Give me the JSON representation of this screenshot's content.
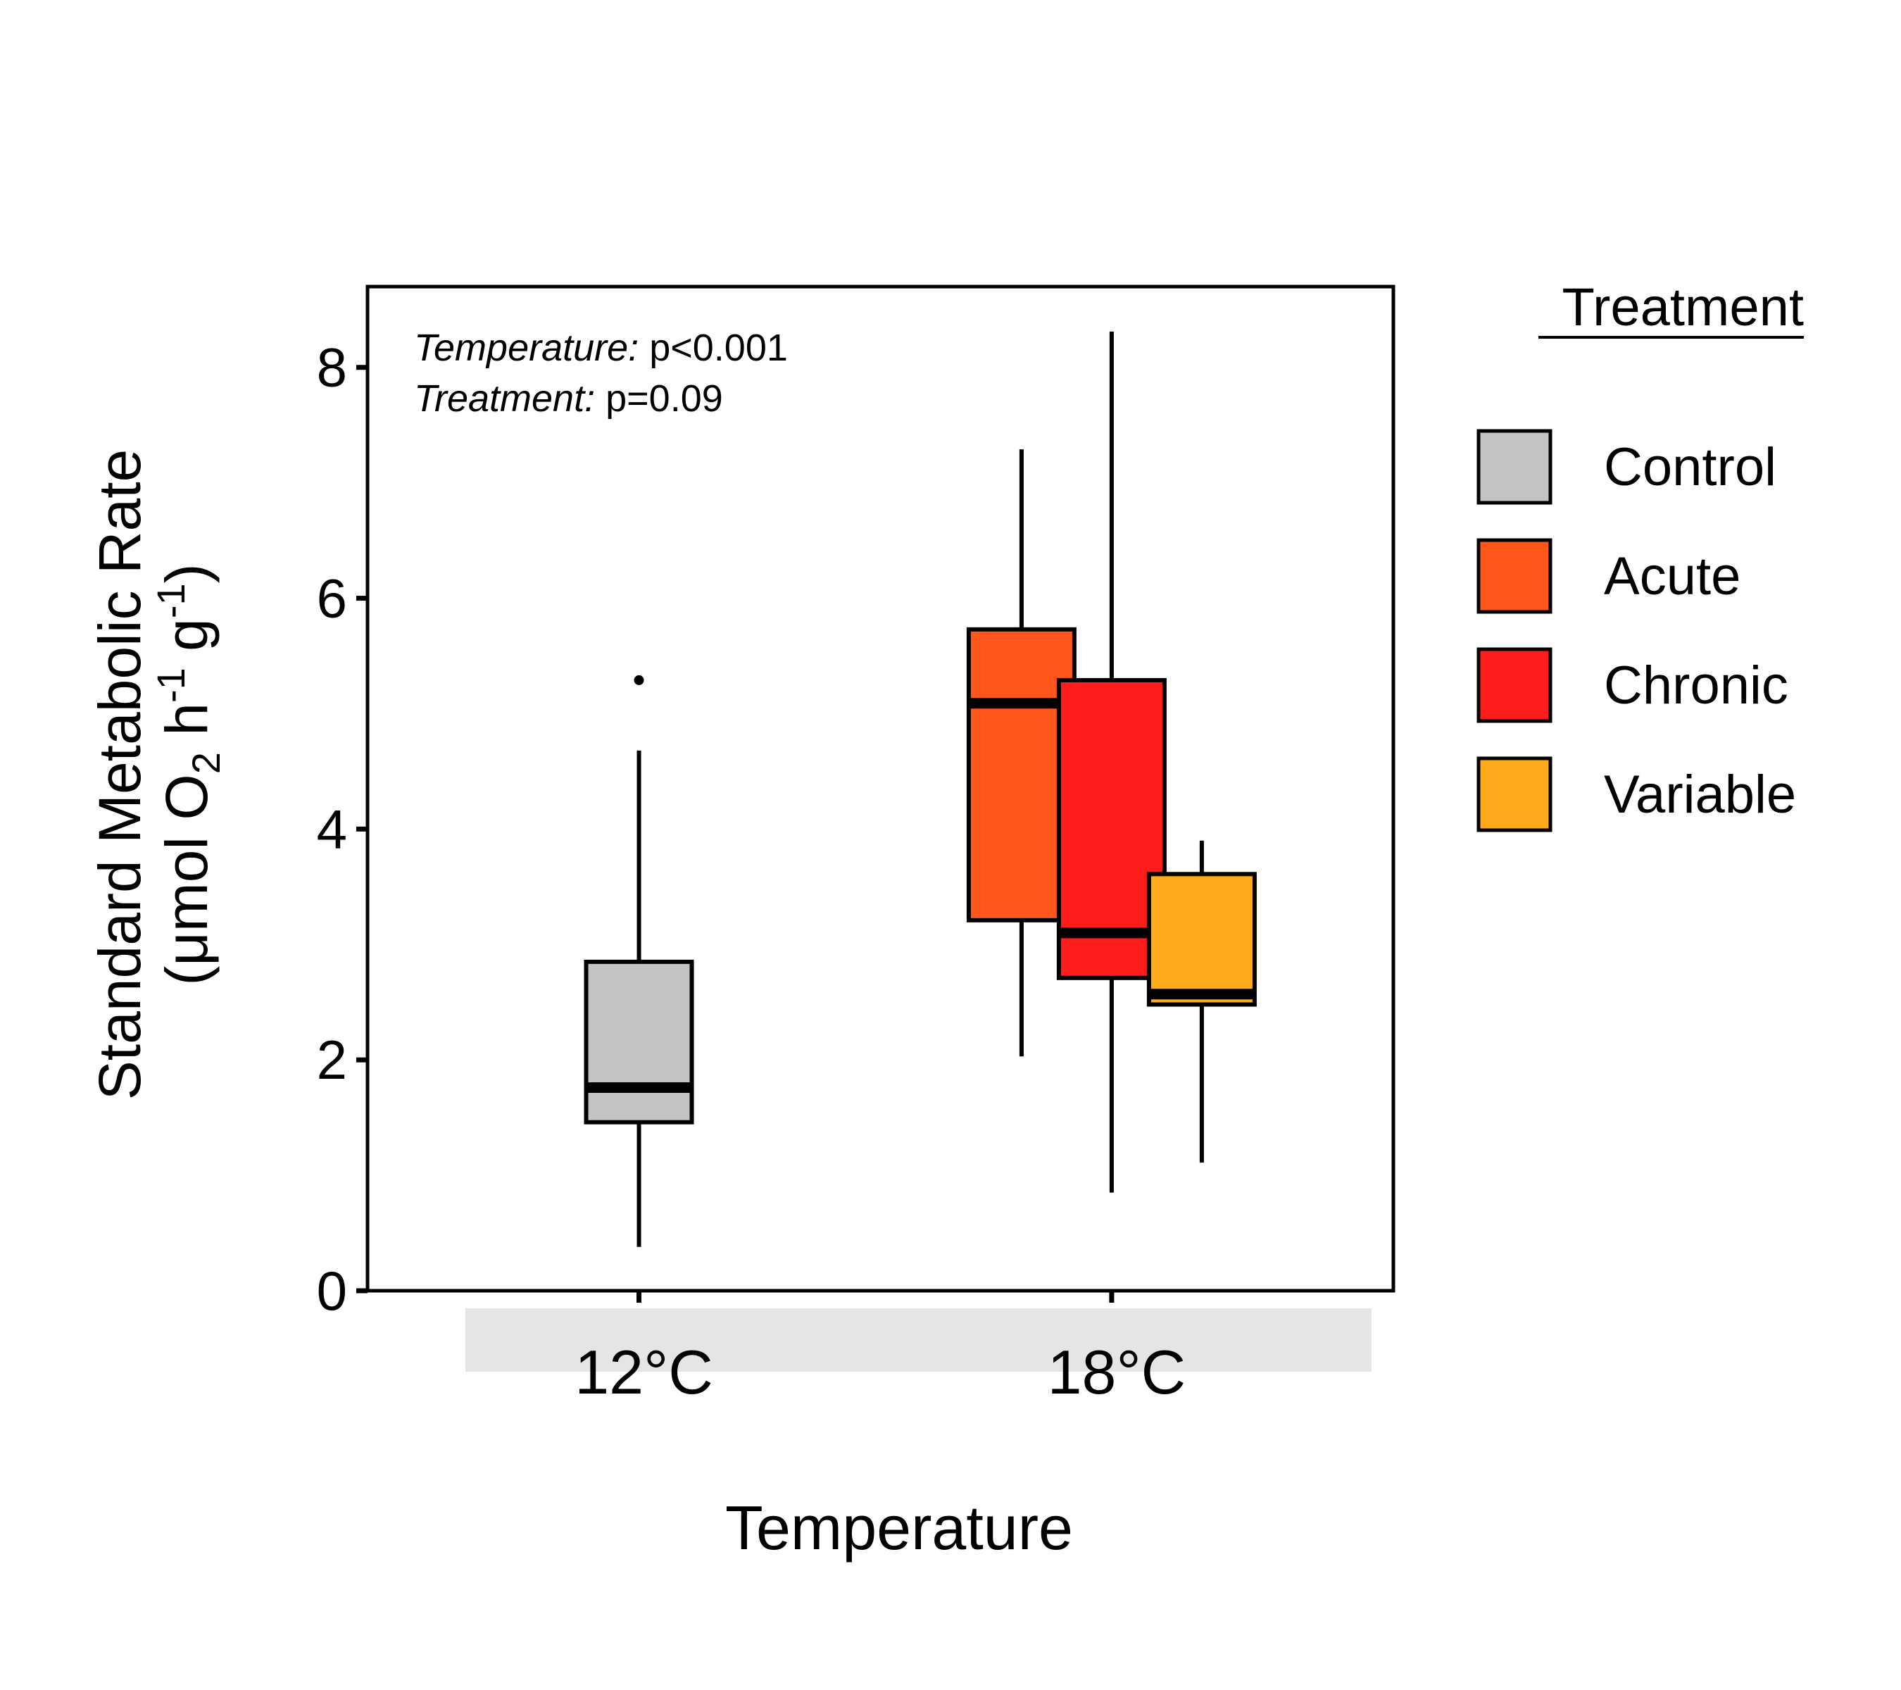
{
  "chart_data": {
    "type": "box",
    "xlabel": "Temperature",
    "ylabel_line1": "Standard Metabolic Rate",
    "ylabel_line2": {
      "open": "(μmol O",
      "sub": "2",
      "mid1": " h",
      "sup1": "-1",
      "mid2": " g",
      "sup2": "-1",
      "close": ")"
    },
    "ylim": [
      0,
      8.7
    ],
    "yticks": [
      0,
      2,
      4,
      6,
      8
    ],
    "grid": false,
    "legend_position": "right",
    "legend_title": "Treatment",
    "categories": [
      "12°C",
      "18°C"
    ],
    "annotations": [
      {
        "label": "Temperature:",
        "value": " p<0.001"
      },
      {
        "label": "Treatment:",
        "value": " p=0.09"
      }
    ],
    "series": [
      {
        "name": "Control",
        "color": "#c3c3c3",
        "boxes": [
          {
            "category": "12°C",
            "whisker_low": 0.38,
            "q1": 1.46,
            "median": 1.76,
            "q3": 2.85,
            "whisker_high": 4.68,
            "outliers": [
              5.29
            ]
          }
        ]
      },
      {
        "name": "Acute",
        "color": "#ff561c",
        "boxes": [
          {
            "category": "18°C",
            "whisker_low": 2.03,
            "q1": 3.21,
            "median": 5.09,
            "q3": 5.73,
            "whisker_high": 7.29,
            "outliers": []
          }
        ]
      },
      {
        "name": "Chronic",
        "color": "#ff1c1c",
        "boxes": [
          {
            "category": "18°C",
            "whisker_low": 0.85,
            "q1": 2.71,
            "median": 3.1,
            "q3": 5.29,
            "whisker_high": 8.31,
            "outliers": []
          }
        ]
      },
      {
        "name": "Variable",
        "color": "#ffab1c",
        "boxes": [
          {
            "category": "18°C",
            "whisker_low": 1.11,
            "q1": 2.48,
            "median": 2.57,
            "q3": 3.61,
            "whisker_high": 3.9,
            "outliers": []
          }
        ]
      }
    ]
  }
}
